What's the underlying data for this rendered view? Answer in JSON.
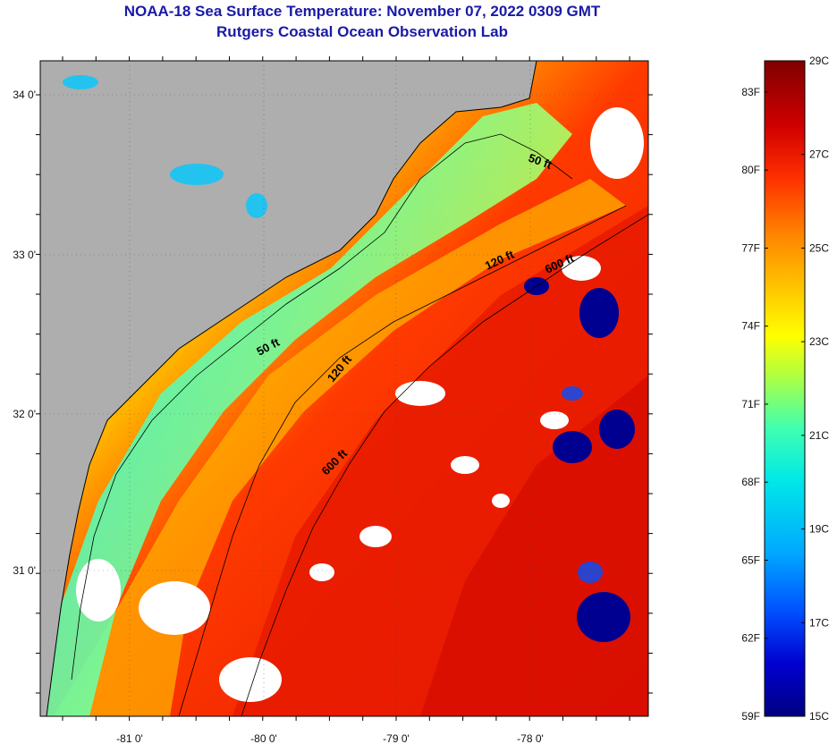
{
  "title": "NOAA-18 Sea Surface Temperature:  November 07, 2022 0309 GMT",
  "subtitle": "Rutgers Coastal Ocean Observation Lab",
  "map": {
    "longitude_ticks": [
      "-81 0'",
      "-80 0'",
      "-79 0'",
      "-78 0'"
    ],
    "latitude_ticks": [
      "34 0'",
      "33 0'",
      "32 0'",
      "31 0'"
    ],
    "contour_labels": [
      "50 ft",
      "120 ft",
      "600 ft",
      "50 ft",
      "120 ft",
      "600 ft"
    ],
    "colors": {
      "land": "#aeaeae",
      "cloud": "#ffffff",
      "coastline": "#000000"
    }
  },
  "colorbar": {
    "fahrenheit_labels": [
      "83F",
      "80F",
      "77F",
      "74F",
      "71F",
      "68F",
      "65F",
      "62F",
      "59F"
    ],
    "celsius_labels": [
      "29C",
      "27C",
      "25C",
      "23C",
      "21C",
      "19C",
      "17C",
      "15C"
    ],
    "range_c": [
      15,
      29
    ],
    "palette": [
      "#000080",
      "#0000d0",
      "#0050ff",
      "#00a8ff",
      "#00e8e8",
      "#40ffb0",
      "#b0ff40",
      "#ffff00",
      "#ffc000",
      "#ff8000",
      "#ff3000",
      "#d00000",
      "#800000"
    ]
  }
}
